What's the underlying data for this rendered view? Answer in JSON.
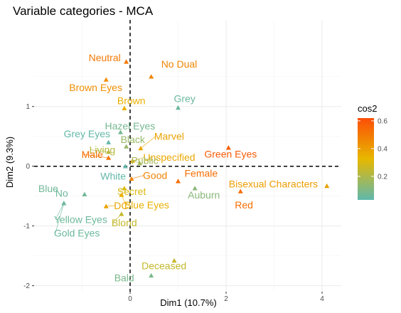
{
  "chart_data": {
    "type": "scatter",
    "title": "Variable categories - MCA",
    "xlabel": "Dim1 (10.7%)",
    "ylabel": "Dim2 (9.3%)",
    "xlim": [
      -2.0,
      4.4
    ],
    "ylim": [
      -2.1,
      2.45
    ],
    "xticks": [
      0,
      2,
      4
    ],
    "yticks": [
      -2,
      -1,
      0,
      1
    ],
    "grid": true,
    "reference_lines": {
      "x": 0,
      "y": 0,
      "style": "dashed"
    },
    "legend": {
      "title": "cos2",
      "placement": "right",
      "ticks": [
        0.2,
        0.4,
        0.6
      ],
      "range": [
        0.03,
        0.62
      ],
      "gradient": [
        "#5FB8AE",
        "#E7B800",
        "#FC4E07"
      ]
    },
    "points": [
      {
        "label": "Neutral",
        "x": -0.08,
        "y": 1.75,
        "cos2": 0.5
      },
      {
        "label": "No Dual",
        "x": 0.44,
        "y": 1.5,
        "cos2": 0.47
      },
      {
        "label": "Brown Eyes",
        "x": -0.5,
        "y": 1.45,
        "cos2": 0.44
      },
      {
        "label": "Brown",
        "x": -0.12,
        "y": 0.97,
        "cos2": 0.35
      },
      {
        "label": "Grey",
        "x": 1.0,
        "y": 0.98,
        "cos2": 0.06
      },
      {
        "label": "Hazel Eyes",
        "x": -0.2,
        "y": 0.57,
        "cos2": 0.08
      },
      {
        "label": "Grey Eyes",
        "x": -0.45,
        "y": 0.4,
        "cos2": 0.04
      },
      {
        "label": "Black",
        "x": -0.08,
        "y": 0.33,
        "cos2": 0.15
      },
      {
        "label": "Marvel",
        "x": 0.22,
        "y": 0.3,
        "cos2": 0.38
      },
      {
        "label": "Living",
        "x": -0.45,
        "y": 0.24,
        "cos2": 0.22
      },
      {
        "label": "Unspecified",
        "x": 0.05,
        "y": 0.09,
        "cos2": 0.37
      },
      {
        "label": "Green Eyes",
        "x": 2.05,
        "y": 0.31,
        "cos2": 0.58
      },
      {
        "label": "Male",
        "x": -0.45,
        "y": 0.14,
        "cos2": 0.52
      },
      {
        "label": "Public",
        "x": 0.2,
        "y": 0.05,
        "cos2": 0.18
      },
      {
        "label": "White",
        "x": -0.1,
        "y": 0.0,
        "cos2": 0.04
      },
      {
        "label": "Good",
        "x": 0.03,
        "y": -0.21,
        "cos2": 0.47
      },
      {
        "label": "Female",
        "x": 1.0,
        "y": -0.25,
        "cos2": 0.53
      },
      {
        "label": "Blue",
        "x": -0.95,
        "y": -0.47,
        "cos2": 0.07
      },
      {
        "label": "Secret",
        "x": -0.12,
        "y": -0.37,
        "cos2": 0.3
      },
      {
        "label": "No",
        "x": -1.38,
        "y": -0.62,
        "cos2": 0.06
      },
      {
        "label": "Bisexual Characters",
        "x": 4.1,
        "y": -0.33,
        "cos2": 0.4
      },
      {
        "label": "Auburn",
        "x": 1.35,
        "y": -0.37,
        "cos2": 0.12
      },
      {
        "label": "Red",
        "x": 2.3,
        "y": -0.42,
        "cos2": 0.53
      },
      {
        "label": "Blue Eyes",
        "x": -0.18,
        "y": -0.48,
        "cos2": 0.35
      },
      {
        "label": "DC",
        "x": -0.5,
        "y": -0.67,
        "cos2": 0.38
      },
      {
        "label": "Yellow Eyes",
        "x": -1.38,
        "y": -0.62,
        "cos2": 0.06
      },
      {
        "label": "Gold Eyes",
        "x": -1.38,
        "y": -0.62,
        "cos2": 0.06
      },
      {
        "label": "Blond",
        "x": -0.18,
        "y": -0.8,
        "cos2": 0.25
      },
      {
        "label": "Deceased",
        "x": 0.92,
        "y": -1.58,
        "cos2": 0.25
      },
      {
        "label": "Bald",
        "x": 0.44,
        "y": -1.83,
        "cos2": 0.09
      }
    ]
  }
}
